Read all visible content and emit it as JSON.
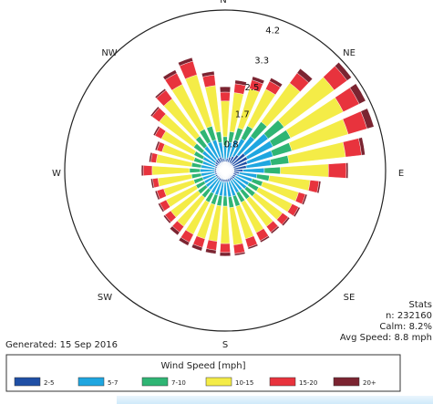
{
  "chart_data": {
    "type": "windrose",
    "direction_labels": [
      "N",
      "NE",
      "E",
      "SE",
      "S",
      "SW",
      "W",
      "NW"
    ],
    "radial_ticks": [
      0.8,
      1.7,
      2.5,
      3.3,
      4.2
    ],
    "rmax": 4.5,
    "series": [
      {
        "name": "2-5",
        "color": "#1f4fa5"
      },
      {
        "name": "5-7",
        "color": "#1fa6e0"
      },
      {
        "name": "7-10",
        "color": "#2fb574"
      },
      {
        "name": "10-15",
        "color": "#f4ec47"
      },
      {
        "name": "15-20",
        "color": "#e8333d"
      },
      {
        "name": "20+",
        "color": "#7b2431"
      }
    ],
    "directions_deg": [
      0,
      10,
      20,
      30,
      40,
      50,
      60,
      70,
      80,
      90,
      100,
      110,
      120,
      130,
      140,
      150,
      160,
      170,
      180,
      190,
      200,
      210,
      220,
      230,
      240,
      250,
      260,
      270,
      280,
      290,
      300,
      310,
      320,
      330,
      340,
      350
    ],
    "cumulative_values": [
      [
        0.3,
        0.7,
        0.95,
        1.95,
        2.2,
        2.35
      ],
      [
        0.35,
        0.8,
        1.1,
        2.2,
        2.45,
        2.55
      ],
      [
        0.4,
        0.9,
        1.25,
        2.4,
        2.65,
        2.75
      ],
      [
        0.45,
        1.0,
        1.4,
        2.55,
        2.8,
        2.9
      ],
      [
        0.55,
        1.2,
        1.7,
        3.05,
        3.4,
        3.55
      ],
      [
        0.7,
        1.5,
        2.05,
        3.8,
        4.25,
        4.4
      ],
      [
        0.7,
        1.5,
        2.05,
        3.7,
        4.2,
        4.4
      ],
      [
        0.65,
        1.4,
        1.95,
        3.6,
        4.15,
        4.35
      ],
      [
        0.6,
        1.3,
        1.8,
        3.4,
        3.85,
        3.95
      ],
      [
        0.5,
        1.1,
        1.55,
        2.9,
        3.4,
        3.45
      ],
      [
        0.4,
        0.9,
        1.25,
        2.4,
        2.65,
        2.7
      ],
      [
        0.35,
        0.8,
        1.1,
        2.15,
        2.35,
        2.4
      ],
      [
        0.33,
        0.75,
        1.05,
        2.1,
        2.3,
        2.35
      ],
      [
        0.33,
        0.75,
        1.05,
        2.0,
        2.2,
        2.25
      ],
      [
        0.32,
        0.7,
        1.0,
        1.95,
        2.15,
        2.2
      ],
      [
        0.32,
        0.7,
        1.0,
        1.95,
        2.2,
        2.25
      ],
      [
        0.33,
        0.75,
        1.05,
        2.0,
        2.25,
        2.3
      ],
      [
        0.33,
        0.75,
        1.05,
        2.1,
        2.35,
        2.4
      ],
      [
        0.32,
        0.72,
        1.0,
        2.05,
        2.3,
        2.4
      ],
      [
        0.32,
        0.72,
        1.0,
        2.0,
        2.25,
        2.35
      ],
      [
        0.32,
        0.72,
        1.0,
        2.0,
        2.25,
        2.35
      ],
      [
        0.32,
        0.72,
        1.0,
        2.0,
        2.25,
        2.35
      ],
      [
        0.3,
        0.68,
        0.95,
        1.95,
        2.15,
        2.25
      ],
      [
        0.3,
        0.68,
        0.95,
        1.9,
        2.1,
        2.15
      ],
      [
        0.3,
        0.66,
        0.92,
        1.85,
        2.05,
        2.1
      ],
      [
        0.3,
        0.66,
        0.92,
        1.8,
        2.0,
        2.05
      ],
      [
        0.3,
        0.68,
        0.95,
        1.9,
        2.05,
        2.1
      ],
      [
        0.3,
        0.7,
        1.0,
        2.05,
        2.3,
        2.35
      ],
      [
        0.3,
        0.68,
        0.95,
        1.95,
        2.1,
        2.15
      ],
      [
        0.3,
        0.66,
        0.92,
        1.85,
        2.0,
        2.05
      ],
      [
        0.32,
        0.7,
        0.98,
        2.0,
        2.2,
        2.25
      ],
      [
        0.35,
        0.8,
        1.1,
        2.3,
        2.55,
        2.6
      ],
      [
        0.38,
        0.85,
        1.2,
        2.5,
        2.8,
        2.85
      ],
      [
        0.4,
        0.9,
        1.3,
        2.7,
        3.05,
        3.15
      ],
      [
        0.4,
        0.9,
        1.3,
        2.8,
        3.2,
        3.3
      ],
      [
        0.35,
        0.8,
        1.1,
        2.4,
        2.7,
        2.8
      ]
    ]
  },
  "stats": {
    "title": "Stats",
    "n": "n: 232160",
    "calm": "Calm: 8.2%",
    "avg": "Avg Speed: 8.8 mph"
  },
  "generated": "Generated: 15 Sep 2016",
  "legend_title": "Wind Speed [mph]"
}
